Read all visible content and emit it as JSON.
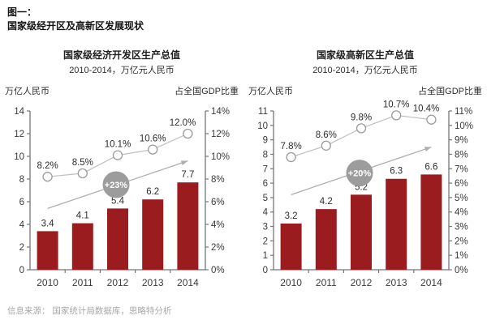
{
  "page": {
    "figure_label": "图一：",
    "title": "国家级经开区及高新区发展现状",
    "source": "信息来源： 国家统计局数据库，思略特分析"
  },
  "colors": {
    "bar": "#9a1c1e",
    "line": "#bdbdbd",
    "marker_fill": "#ffffff",
    "marker_stroke": "#9c9c9c",
    "arrow": "#aeaeae",
    "badge_bg": "#9c9c9c",
    "badge_text": "#ffffff",
    "axis": "#767676",
    "tick_text": "#3a3a3a",
    "label_text": "#2d2d2d"
  },
  "chart_data": [
    {
      "type": "bar",
      "title": "国家级经济开发区生产总值",
      "subtitle": "2010-2014，万亿元人民币",
      "left_axis_label": "万亿人民币",
      "right_axis_label": "占全国GDP比重",
      "categories": [
        "2010",
        "2011",
        "2012",
        "2013",
        "2014"
      ],
      "series": [
        {
          "name": "生产总值",
          "type": "bar",
          "values": [
            3.4,
            4.1,
            5.4,
            6.2,
            7.7
          ],
          "labels": [
            "3.4",
            "4.1",
            "5.4",
            "6.2",
            "7.7"
          ]
        },
        {
          "name": "占全国GDP比重",
          "type": "line",
          "values": [
            8.2,
            8.5,
            10.1,
            10.6,
            12.0
          ],
          "labels": [
            "8.2%",
            "8.5%",
            "10.1%",
            "10.6%",
            "12.0%"
          ]
        }
      ],
      "left_axis": {
        "min": 0,
        "max": 14,
        "step": 2,
        "suffix": ""
      },
      "right_axis": {
        "min": 0,
        "max": 14,
        "step": 2,
        "suffix": "%"
      },
      "growth_badge": {
        "label": "+23%",
        "x_index": 2,
        "value": 7.5
      },
      "trend_arrow": {
        "from_index": 0,
        "from_value": 5.4,
        "to_index": 4,
        "to_value": 9.6
      }
    },
    {
      "type": "bar",
      "title": "国家级高新区生产总值",
      "subtitle": "2010-2014，万亿元人民币",
      "left_axis_label": "万亿人民币",
      "right_axis_label": "占全国GDP比重",
      "categories": [
        "2010",
        "2011",
        "2012",
        "2013",
        "2014"
      ],
      "series": [
        {
          "name": "生产总值",
          "type": "bar",
          "values": [
            3.2,
            4.2,
            5.2,
            6.3,
            6.6
          ],
          "labels": [
            "3.2",
            "4.2",
            "5.2",
            "6.3",
            "6.6"
          ]
        },
        {
          "name": "占全国GDP比重",
          "type": "line",
          "values": [
            7.8,
            8.6,
            9.8,
            10.7,
            10.4
          ],
          "labels": [
            "7.8%",
            "8.6%",
            "9.8%",
            "10.7%",
            "10.4%"
          ]
        }
      ],
      "left_axis": {
        "min": 0,
        "max": 11,
        "step": 1,
        "suffix": ""
      },
      "right_axis": {
        "min": 0,
        "max": 11,
        "step": 1,
        "suffix": "%"
      },
      "growth_badge": {
        "label": "+20%",
        "x_index": 2,
        "value": 6.7
      },
      "trend_arrow": {
        "from_index": 0,
        "from_value": 5.2,
        "to_index": 4,
        "to_value": 8.5
      }
    }
  ]
}
